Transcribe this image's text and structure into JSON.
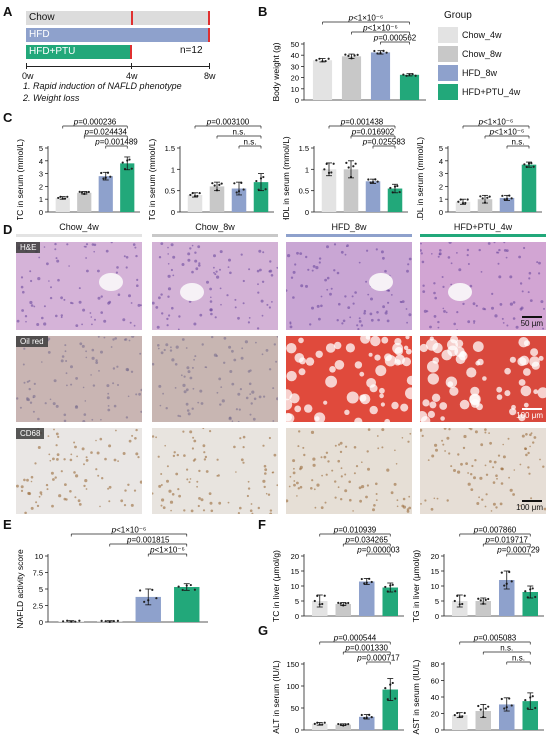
{
  "panel_labels": {
    "a": "A",
    "b": "B",
    "c": "C",
    "d": "D",
    "e": "E",
    "f": "F",
    "g": "G"
  },
  "colors": {
    "chow4": "#e3e3e3",
    "chow8": "#c8c8c8",
    "hfd": "#8ea1cc",
    "ptu": "#22a87a",
    "red": "#e03030"
  },
  "panel_a": {
    "bars": [
      "Chow",
      "HFD",
      "HFD+PTU"
    ],
    "n_label": "n=12",
    "ticks": [
      "0w",
      "4w",
      "8w"
    ],
    "notes": [
      "1. Rapid induction of NAFLD phenotype",
      "2. Weight loss"
    ]
  },
  "legend": {
    "title": "Group",
    "items": [
      "Chow_4w",
      "Chow_8w",
      "HFD_8w",
      "HFD+PTU_4w"
    ]
  },
  "panel_d": {
    "groups": [
      "Chow_4w",
      "Chow_8w",
      "HFD_8w",
      "HFD+PTU_4w"
    ],
    "stains": [
      "H&E",
      "Oil red",
      "CD68"
    ],
    "scales": [
      "50 μm",
      "100 μm",
      "100 μm"
    ]
  },
  "chart_data": [
    {
      "id": "body_weight",
      "type": "bar",
      "ylabel": "Body weight (g)",
      "ylim": [
        0,
        50
      ],
      "yticks": [
        0,
        10,
        20,
        30,
        40,
        50
      ],
      "values": [
        35.5,
        39.0,
        42.5,
        22.5
      ],
      "errors": [
        1.5,
        2.0,
        1.5,
        1.0
      ],
      "pvals": [
        "p<1×10⁻⁶",
        "p<1×10⁻⁶",
        "p=0.000562"
      ]
    },
    {
      "id": "tc_serum",
      "type": "bar",
      "ylabel": "TC in serum (mmol/L)",
      "ylim": [
        0,
        5
      ],
      "yticks": [
        0,
        1,
        2,
        3,
        4,
        5
      ],
      "values": [
        1.1,
        1.5,
        2.8,
        3.8
      ],
      "errors": [
        0.1,
        0.1,
        0.3,
        0.5
      ],
      "pvals": [
        "p=0.000236",
        "p=0.024434",
        "p=0.001489"
      ]
    },
    {
      "id": "tg_serum",
      "type": "bar",
      "ylabel": "TG in serum (mmol/L)",
      "ylim": [
        0,
        1.5
      ],
      "yticks": [
        0,
        0.5,
        1.0,
        1.5
      ],
      "values": [
        0.4,
        0.6,
        0.55,
        0.7
      ],
      "errors": [
        0.05,
        0.1,
        0.15,
        0.2
      ],
      "pvals": [
        "p=0.003100",
        "n.s.",
        "n.s."
      ]
    },
    {
      "id": "hdl_serum",
      "type": "bar",
      "ylabel": "HDL in serum (mmol/L)",
      "ylim": [
        0,
        1.5
      ],
      "yticks": [
        0,
        0.5,
        1.0,
        1.5
      ],
      "values": [
        1.0,
        1.0,
        0.72,
        0.55
      ],
      "errors": [
        0.15,
        0.2,
        0.05,
        0.1
      ],
      "pvals": [
        "p=0.001438",
        "p=0.016902",
        "p=0.025583"
      ]
    },
    {
      "id": "ldl_serum",
      "type": "bar",
      "ylabel": "LDL in serum (mmol/L)",
      "ylim": [
        0,
        5
      ],
      "yticks": [
        0,
        1,
        2,
        3,
        4,
        5
      ],
      "values": [
        0.8,
        1.0,
        1.1,
        3.7
      ],
      "errors": [
        0.2,
        0.3,
        0.2,
        0.2
      ],
      "pvals": [
        "p<1×10⁻⁶",
        "p<1×10⁻⁶",
        "n.s."
      ]
    },
    {
      "id": "nafld_score",
      "type": "bar",
      "ylabel": "NAFLD activity score",
      "ylim": [
        0,
        10
      ],
      "yticks": [
        0,
        2.5,
        5.0,
        7.5,
        10.0
      ],
      "values": [
        0.1,
        0.1,
        3.8,
        5.3
      ],
      "errors": [
        0.1,
        0.1,
        1.2,
        0.5
      ],
      "pvals": [
        "p<1×10⁻⁶",
        "p=0.001815",
        "p<1×10⁻⁶"
      ]
    },
    {
      "id": "tc_liver",
      "type": "bar",
      "ylabel": "TC in liver (μmol/g)",
      "ylim": [
        0,
        20
      ],
      "yticks": [
        0,
        5,
        10,
        15,
        20
      ],
      "values": [
        5.0,
        4.0,
        11.5,
        9.5
      ],
      "errors": [
        2.0,
        0.5,
        1.0,
        1.5
      ],
      "pvals": [
        "p=0.010939",
        "p=0.034265",
        "p=0.000003"
      ]
    },
    {
      "id": "tg_liver",
      "type": "bar",
      "ylabel": "TG in liver (μmol/g)",
      "ylim": [
        0,
        20
      ],
      "yticks": [
        0,
        5,
        10,
        15,
        20
      ],
      "values": [
        5.0,
        5.0,
        12.0,
        8.0
      ],
      "errors": [
        2.0,
        1.0,
        3.0,
        2.0
      ],
      "pvals": [
        "p=0.007860",
        "p=0.019717",
        "p=0.000729"
      ]
    },
    {
      "id": "alt_serum",
      "type": "bar",
      "ylabel": "ALT in serum (IU/L)",
      "ylim": [
        0,
        150
      ],
      "yticks": [
        0,
        50,
        100,
        150
      ],
      "values": [
        14,
        12,
        30,
        92
      ],
      "errors": [
        3,
        2,
        5,
        25
      ],
      "pvals": [
        "p=0.000544",
        "p=0.001330",
        "p=0.000717"
      ]
    },
    {
      "id": "ast_serum",
      "type": "bar",
      "ylabel": "AST in serum (IU/L)",
      "ylim": [
        0,
        80
      ],
      "yticks": [
        0,
        20,
        40,
        60,
        80
      ],
      "values": [
        18,
        23,
        31,
        35
      ],
      "errors": [
        3,
        8,
        8,
        10
      ],
      "pvals": [
        "p=0.005083",
        "n.s.",
        "n.s."
      ]
    }
  ]
}
